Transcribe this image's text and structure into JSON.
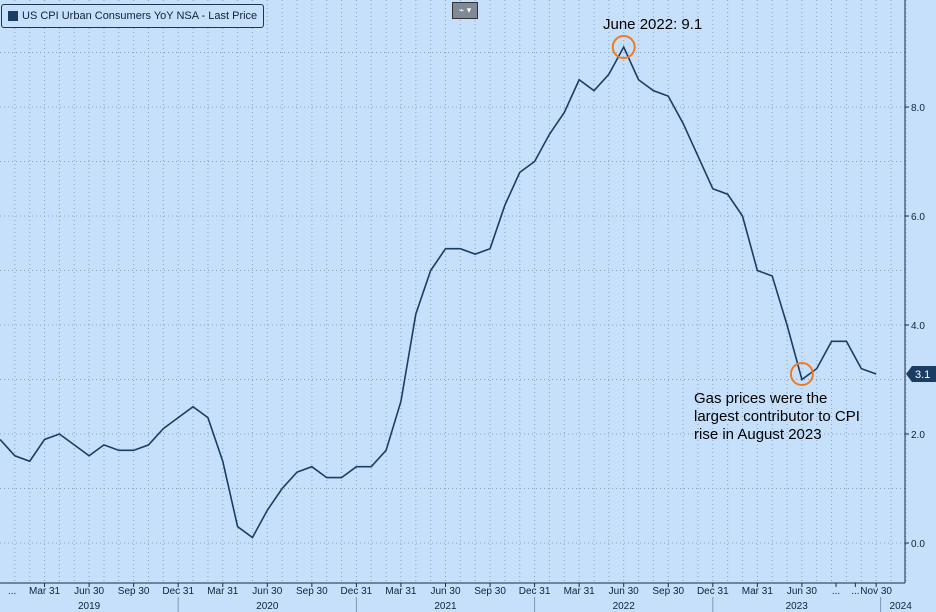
{
  "legend": {
    "label": "US CPI Urban Consumers YoY NSA - Last Price",
    "color": "#1c3d63"
  },
  "toolbar": {
    "icon": "chart-type-icon"
  },
  "chart_data": {
    "type": "line",
    "title": "US CPI Urban Consumers YoY NSA - Last Price",
    "x": [
      "2018-12",
      "2019-01",
      "2019-02",
      "2019-03",
      "2019-04",
      "2019-05",
      "2019-06",
      "2019-07",
      "2019-08",
      "2019-09",
      "2019-10",
      "2019-11",
      "2019-12",
      "2020-01",
      "2020-02",
      "2020-03",
      "2020-04",
      "2020-05",
      "2020-06",
      "2020-07",
      "2020-08",
      "2020-09",
      "2020-10",
      "2020-11",
      "2020-12",
      "2021-01",
      "2021-02",
      "2021-03",
      "2021-04",
      "2021-05",
      "2021-06",
      "2021-07",
      "2021-08",
      "2021-09",
      "2021-10",
      "2021-11",
      "2021-12",
      "2022-01",
      "2022-02",
      "2022-03",
      "2022-04",
      "2022-05",
      "2022-06",
      "2022-07",
      "2022-08",
      "2022-09",
      "2022-10",
      "2022-11",
      "2022-12",
      "2023-01",
      "2023-02",
      "2023-03",
      "2023-04",
      "2023-05",
      "2023-06",
      "2023-07",
      "2023-08",
      "2023-09",
      "2023-10",
      "2023-11"
    ],
    "values": [
      1.9,
      1.6,
      1.5,
      1.9,
      2.0,
      1.8,
      1.6,
      1.8,
      1.7,
      1.7,
      1.8,
      2.1,
      2.3,
      2.5,
      2.3,
      1.5,
      0.3,
      0.1,
      0.6,
      1.0,
      1.3,
      1.4,
      1.2,
      1.2,
      1.4,
      1.4,
      1.7,
      2.6,
      4.2,
      5.0,
      5.4,
      5.4,
      5.3,
      5.4,
      6.2,
      6.8,
      7.0,
      7.5,
      7.9,
      8.5,
      8.3,
      8.6,
      9.1,
      8.5,
      8.3,
      8.2,
      7.7,
      7.1,
      6.5,
      6.4,
      6.0,
      5.0,
      4.9,
      4.0,
      3.0,
      3.2,
      3.7,
      3.7,
      3.2,
      3.1
    ],
    "ylim": [
      -0.7,
      10
    ],
    "yticks": [
      "0.0",
      "2.0",
      "4.0",
      "6.0",
      "8.0"
    ],
    "xticks": [
      "...",
      "Mar 31",
      "Jun 30",
      "Sep 30",
      "Dec 31",
      "Mar 31",
      "Jun 30",
      "Sep 30",
      "Dec 31",
      "Mar 31",
      "Jun 30",
      "Sep 30",
      "Dec 31",
      "Mar 31",
      "Jun 30",
      "Sep 30",
      "Dec 31",
      "Mar 31",
      "Jun 30",
      "...",
      "...",
      "Nov 30"
    ],
    "years": [
      "2019",
      "2020",
      "2021",
      "2022",
      "2023",
      "2024"
    ],
    "last_value_label": "3.1",
    "annotations": {
      "peak": "June 2022: 9.1",
      "gas": "Gas prices were the largest contributor to CPI rise in August 2023"
    },
    "line_color": "#1c3d63",
    "highlight_color": "#f07a22"
  }
}
